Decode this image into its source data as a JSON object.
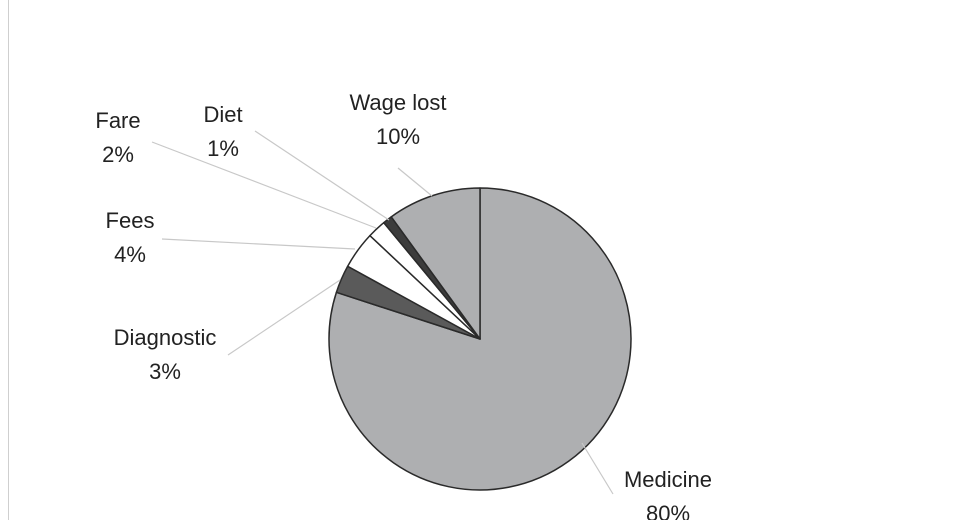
{
  "chart_data": {
    "type": "pie",
    "title": "",
    "legend": "none",
    "start_angle_deg": 0,
    "direction": "clockwise",
    "slices": [
      {
        "label": "Medicine",
        "value": 80,
        "value_label": "80%",
        "color": "#aeafb1"
      },
      {
        "label": "Diagnostic",
        "value": 3,
        "value_label": "3%",
        "color": "#5a5a5a"
      },
      {
        "label": "Fees",
        "value": 4,
        "value_label": "4%",
        "color": "#ffffff"
      },
      {
        "label": "Fare",
        "value": 2,
        "value_label": "2%",
        "color": "#ffffff"
      },
      {
        "label": "Diet",
        "value": 1,
        "value_label": "1%",
        "color": "#3c3c3c"
      },
      {
        "label": "Wage lost",
        "value": 10,
        "value_label": "10%",
        "color": "#aeafb1"
      }
    ]
  },
  "colors": {
    "slice_border": "#2a2a2a",
    "leader_line": "#c8c8c8",
    "frame": "#cfcfcf"
  }
}
